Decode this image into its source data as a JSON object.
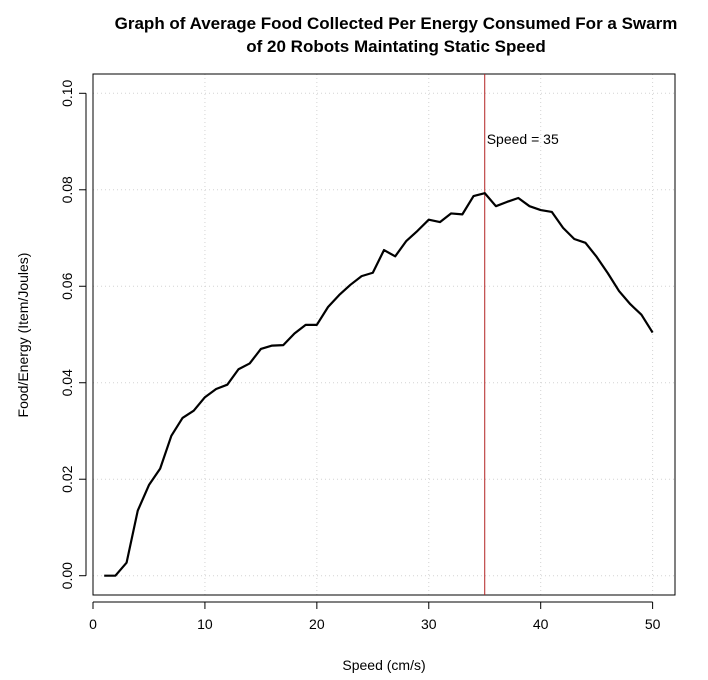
{
  "chart_data": {
    "type": "line",
    "title": "Graph of Average Food Collected Per Energy Consumed For a Swarm",
    "subtitle": "of 20 Robots Maintating Static Speed",
    "xlabel": "Speed (cm/s)",
    "ylabel": "Food/Energy (Item/Joules)",
    "xlim": [
      0,
      52
    ],
    "ylim": [
      -0.004,
      0.104
    ],
    "xticks": [
      0,
      10,
      20,
      30,
      40,
      50
    ],
    "xtick_labels": [
      "0",
      "10",
      "20",
      "30",
      "40",
      "50"
    ],
    "yticks": [
      0,
      0.02,
      0.04,
      0.06,
      0.08,
      0.1
    ],
    "ytick_labels": [
      "0.00",
      "0.02",
      "0.04",
      "0.06",
      "0.08",
      "0.10"
    ],
    "grid": true,
    "line_color": "#000000",
    "series": [
      {
        "x": [
          1,
          2,
          3,
          4,
          5,
          6,
          7,
          8,
          9,
          10,
          11,
          12,
          13,
          14,
          15,
          16,
          17,
          18,
          19,
          20,
          21,
          22,
          23,
          24,
          25,
          26,
          27,
          28,
          29,
          30,
          31,
          32,
          33,
          34,
          35,
          36,
          37,
          38,
          39,
          40,
          41,
          42,
          43,
          44,
          45,
          46,
          47,
          48,
          49,
          50
        ],
        "values": [
          0.0,
          0.0,
          0.0027,
          0.0135,
          0.0188,
          0.0222,
          0.029,
          0.0327,
          0.0342,
          0.037,
          0.0387,
          0.0396,
          0.0428,
          0.044,
          0.047,
          0.0477,
          0.0478,
          0.0502,
          0.052,
          0.052,
          0.0557,
          0.0582,
          0.0603,
          0.0621,
          0.0628,
          0.0675,
          0.0662,
          0.0694,
          0.0715,
          0.0738,
          0.0733,
          0.0751,
          0.0749,
          0.0787,
          0.0793,
          0.0766,
          0.0775,
          0.0783,
          0.0766,
          0.0758,
          0.0754,
          0.0721,
          0.0698,
          0.069,
          0.0661,
          0.0627,
          0.059,
          0.0563,
          0.0541,
          0.0504
        ]
      }
    ],
    "vline": {
      "x": 35,
      "color": "#b22222"
    },
    "annotation": {
      "text": "Speed = 35",
      "x": 35,
      "y": 0.0895
    }
  }
}
